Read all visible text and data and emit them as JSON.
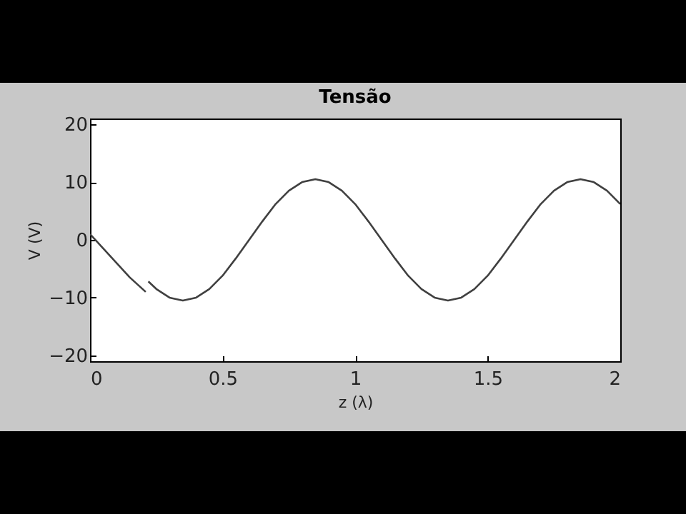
{
  "chart_data": {
    "type": "line",
    "title": "Tensão",
    "xlabel": "z (λ)",
    "ylabel": "V (V)",
    "x": [
      0,
      0.05,
      0.1,
      0.15,
      0.21,
      0.215,
      0.22,
      0.25,
      0.3,
      0.35,
      0.4,
      0.45,
      0.5,
      0.55,
      0.6,
      0.65,
      0.7,
      0.75,
      0.8,
      0.85,
      0.9,
      0.95,
      1,
      1.05,
      1.1,
      1.15,
      1.2,
      1.25,
      1.3,
      1.35,
      1.4,
      1.45,
      1.5,
      1.55,
      1.6,
      1.65,
      1.7,
      1.75,
      1.8,
      1.85,
      1.9,
      1.95,
      2
    ],
    "series": [
      {
        "color": "#404040",
        "values": [
          1,
          -1.5,
          -4,
          -6.5,
          -9,
          null,
          -7.2,
          -8.5,
          -10,
          -10.5,
          -10,
          -8.5,
          -6.2,
          -3.2,
          0,
          3.2,
          6.2,
          8.5,
          10,
          10.5,
          10,
          8.5,
          6.2,
          3.2,
          0,
          -3.2,
          -6.2,
          -8.5,
          -10,
          -10.5,
          -10,
          -8.5,
          -6.2,
          -3.2,
          0,
          3.2,
          6.2,
          8.5,
          10,
          10.5,
          10,
          8.5,
          6.2
        ]
      }
    ],
    "xlim": [
      0,
      2
    ],
    "xticks": [
      0,
      0.5,
      1,
      1.5,
      2
    ],
    "ylim": [
      -21,
      21
    ],
    "yticks": [
      -20,
      -10,
      0,
      10,
      20
    ],
    "grid": false,
    "legend": false,
    "marker": "none",
    "line_style": "solid"
  }
}
